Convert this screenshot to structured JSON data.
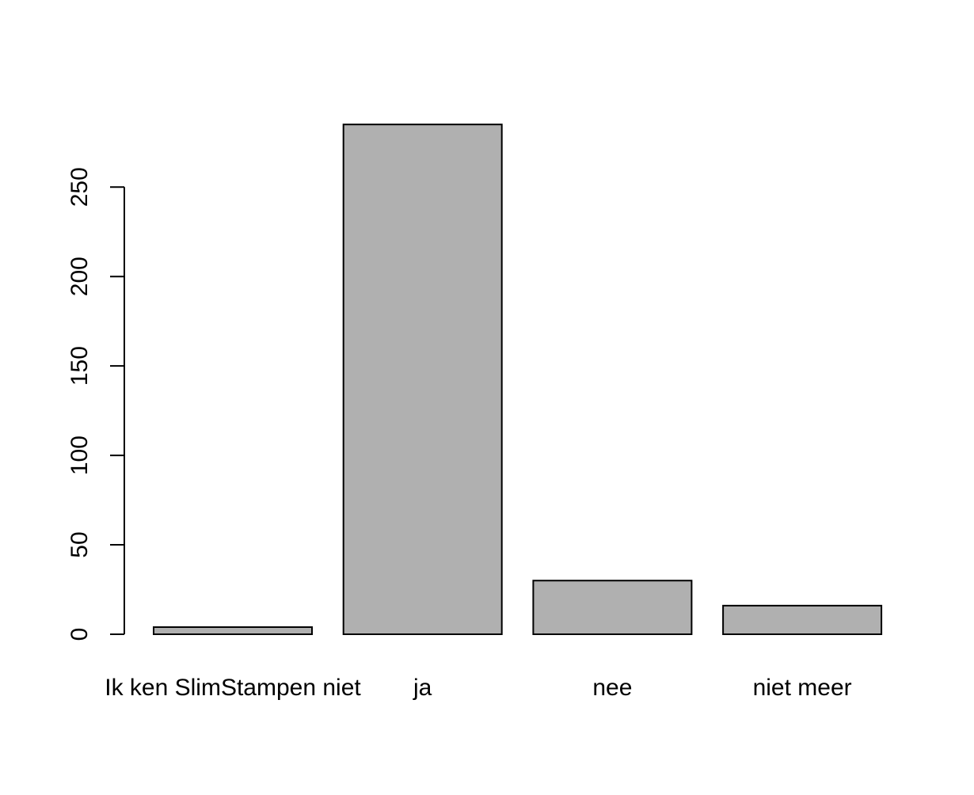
{
  "chart_data": {
    "type": "bar",
    "title": "",
    "xlabel": "",
    "ylabel": "",
    "categories": [
      "Ik ken SlimStampen niet",
      "ja",
      "nee",
      "niet meer"
    ],
    "values": [
      4,
      285,
      30,
      16
    ],
    "ylim": [
      0,
      285
    ],
    "yticks": [
      0,
      50,
      100,
      150,
      200,
      250
    ],
    "grid": false,
    "legend": "none",
    "colors": {
      "bar_fill": "#b0b0b0",
      "bar_stroke": "#000000",
      "axis": "#000000"
    }
  }
}
